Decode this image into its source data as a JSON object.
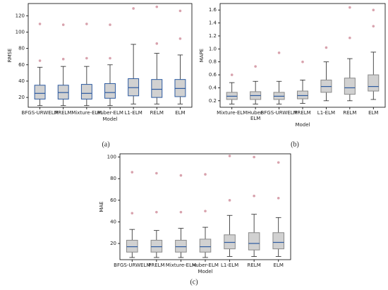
{
  "chart_data": [
    {
      "type": "box",
      "caption": "(a)",
      "xlabel": "Model",
      "ylabel": "RMSE",
      "categories": [
        "BFGS-URWELM",
        "PRELM",
        "Mixture-ELM",
        "Huber-ELM",
        "L1-ELM",
        "RELM",
        "ELM"
      ],
      "boxes": [
        {
          "whislo": 10,
          "q1": 18,
          "med": 25,
          "q3": 35,
          "whishi": 57,
          "outliers": [
            65,
            110
          ]
        },
        {
          "whislo": 10,
          "q1": 18,
          "med": 26,
          "q3": 35,
          "whishi": 58,
          "outliers": [
            67,
            109
          ]
        },
        {
          "whislo": 10,
          "q1": 18,
          "med": 25,
          "q3": 36,
          "whishi": 58,
          "outliers": [
            68,
            110
          ]
        },
        {
          "whislo": 10,
          "q1": 19,
          "med": 26,
          "q3": 37,
          "whishi": 60,
          "outliers": [
            68,
            109
          ]
        },
        {
          "whislo": 12,
          "q1": 22,
          "med": 32,
          "q3": 43,
          "whishi": 85,
          "outliers": [
            129
          ]
        },
        {
          "whislo": 12,
          "q1": 20,
          "med": 30,
          "q3": 42,
          "whishi": 74,
          "outliers": [
            86,
            131
          ]
        },
        {
          "whislo": 12,
          "q1": 21,
          "med": 31,
          "q3": 42,
          "whishi": 72,
          "outliers": [
            92,
            126
          ]
        }
      ],
      "ylim": [
        8,
        135
      ],
      "yticks": [
        20,
        40,
        60,
        80,
        100,
        120
      ],
      "box_color": "#c9c9c9",
      "edge_color": "#2c5aa0",
      "median_color": "#2c5aa0",
      "outlier_color": "#c77b8a"
    },
    {
      "type": "box",
      "caption": "(b)",
      "xlabel": "Model",
      "ylabel": "MAPE",
      "categories": [
        "Mixture-ELM",
        "Huber-\nELM",
        "BFGS-URWELM",
        "PRELM",
        "L1-ELM",
        "RELM",
        "ELM"
      ],
      "boxes": [
        {
          "whislo": 0.15,
          "q1": 0.22,
          "med": 0.27,
          "q3": 0.33,
          "whishi": 0.48,
          "outliers": [
            0.6
          ]
        },
        {
          "whislo": 0.15,
          "q1": 0.22,
          "med": 0.28,
          "q3": 0.34,
          "whishi": 0.5,
          "outliers": [
            0.73
          ]
        },
        {
          "whislo": 0.15,
          "q1": 0.22,
          "med": 0.27,
          "q3": 0.33,
          "whishi": 0.5,
          "outliers": [
            0.94
          ]
        },
        {
          "whislo": 0.16,
          "q1": 0.23,
          "med": 0.28,
          "q3": 0.35,
          "whishi": 0.52,
          "outliers": [
            0.8
          ]
        },
        {
          "whislo": 0.2,
          "q1": 0.33,
          "med": 0.42,
          "q3": 0.52,
          "whishi": 0.8,
          "outliers": [
            1.02
          ]
        },
        {
          "whislo": 0.2,
          "q1": 0.3,
          "med": 0.4,
          "q3": 0.55,
          "whishi": 0.85,
          "outliers": [
            1.17,
            1.64
          ]
        },
        {
          "whislo": 0.22,
          "q1": 0.35,
          "med": 0.42,
          "q3": 0.6,
          "whishi": 0.95,
          "outliers": [
            1.35,
            1.6
          ]
        }
      ],
      "ylim": [
        0.1,
        1.7
      ],
      "yticks": [
        0.2,
        0.4,
        0.6,
        0.8,
        {
          "value": 1.0,
          "label": "1.0"
        },
        1.2,
        1.4,
        1.6
      ],
      "box_color": "#c9c9c9",
      "edge_color": "#8a8a8a",
      "median_color": "#2c5aa0",
      "outlier_color": "#c77b8a"
    },
    {
      "type": "box",
      "caption": "(c)",
      "xlabel": "Model",
      "ylabel": "MAE",
      "categories": [
        "BFGS-URWELM",
        "PRELM",
        "Mixture-ELM",
        "Huber-ELM",
        "L1-ELM",
        "RELM",
        "ELM"
      ],
      "boxes": [
        {
          "whislo": 7,
          "q1": 12,
          "med": 17,
          "q3": 23,
          "whishi": 33,
          "outliers": [
            48,
            86
          ]
        },
        {
          "whislo": 7,
          "q1": 12,
          "med": 17,
          "q3": 23,
          "whishi": 32,
          "outliers": [
            49,
            85
          ]
        },
        {
          "whislo": 7,
          "q1": 12,
          "med": 17,
          "q3": 23,
          "whishi": 34,
          "outliers": [
            49,
            83
          ]
        },
        {
          "whislo": 7,
          "q1": 12,
          "med": 17,
          "q3": 24,
          "whishi": 35,
          "outliers": [
            50,
            84
          ]
        },
        {
          "whislo": 8,
          "q1": 15,
          "med": 21,
          "q3": 28,
          "whishi": 46,
          "outliers": [
            60,
            101
          ]
        },
        {
          "whislo": 8,
          "q1": 14,
          "med": 20,
          "q3": 30,
          "whishi": 47,
          "outliers": [
            64,
            100
          ]
        },
        {
          "whislo": 8,
          "q1": 15,
          "med": 21,
          "q3": 30,
          "whishi": 44,
          "outliers": [
            62,
            95
          ]
        }
      ],
      "ylim": [
        5,
        103
      ],
      "yticks": [
        20,
        40,
        60,
        80,
        100
      ],
      "box_color": "#c9c9c9",
      "edge_color": "#8a8a8a",
      "median_color": "#2c5aa0",
      "outlier_color": "#c77b8a"
    }
  ]
}
